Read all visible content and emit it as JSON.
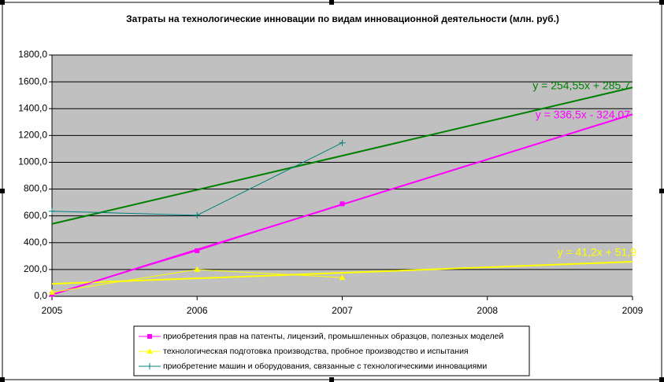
{
  "chart_data": {
    "type": "line",
    "title": "Затраты на технологические инновации по видам инновационной деятельности (млн. руб.)",
    "x": [
      2005,
      2006,
      2007
    ],
    "xlim": [
      2005,
      2009
    ],
    "xticks": [
      2005,
      2006,
      2007,
      2008,
      2009
    ],
    "ylim": [
      0,
      1800
    ],
    "yticks": [
      {
        "value": 0,
        "label": "0,0"
      },
      {
        "value": 200,
        "label": "200,0"
      },
      {
        "value": 400,
        "label": "400,0"
      },
      {
        "value": 600,
        "label": "600,0"
      },
      {
        "value": 800,
        "label": "800,0"
      },
      {
        "value": 1000,
        "label": "1000,0"
      },
      {
        "value": 1200,
        "label": "1200,0"
      },
      {
        "value": 1400,
        "label": "1400,0"
      },
      {
        "value": 1600,
        "label": "1600,0"
      },
      {
        "value": 1800,
        "label": "1800,0"
      }
    ],
    "grid": true,
    "series": [
      {
        "name": "приобретения прав на патенты, лицензий, промышленных образцов, полезных моделей",
        "color": "#ff00ff",
        "marker": "square",
        "values": [
          15,
          340,
          690
        ]
      },
      {
        "name": "технологическая подготовка производства, пробное производство и испытания",
        "color": "#ffff00",
        "marker": "triangle",
        "values": [
          30,
          200,
          140
        ]
      },
      {
        "name": "приобретение машин и оборудования, связанные с технологическими инновациями",
        "color": "#008080",
        "marker": "plus",
        "values": [
          635,
          605,
          1145
        ]
      }
    ],
    "trendlines": [
      {
        "label": "y = 254,55x + 285,7",
        "color": "#008000",
        "values": [
          540,
          1558
        ]
      },
      {
        "label": "y = 336,5x - 324,07",
        "color": "#ff00ff",
        "values": [
          12,
          1358
        ]
      },
      {
        "label": "y = 41,2x + 51,9",
        "color": "#ffff00",
        "values": [
          93,
          258
        ]
      }
    ]
  }
}
